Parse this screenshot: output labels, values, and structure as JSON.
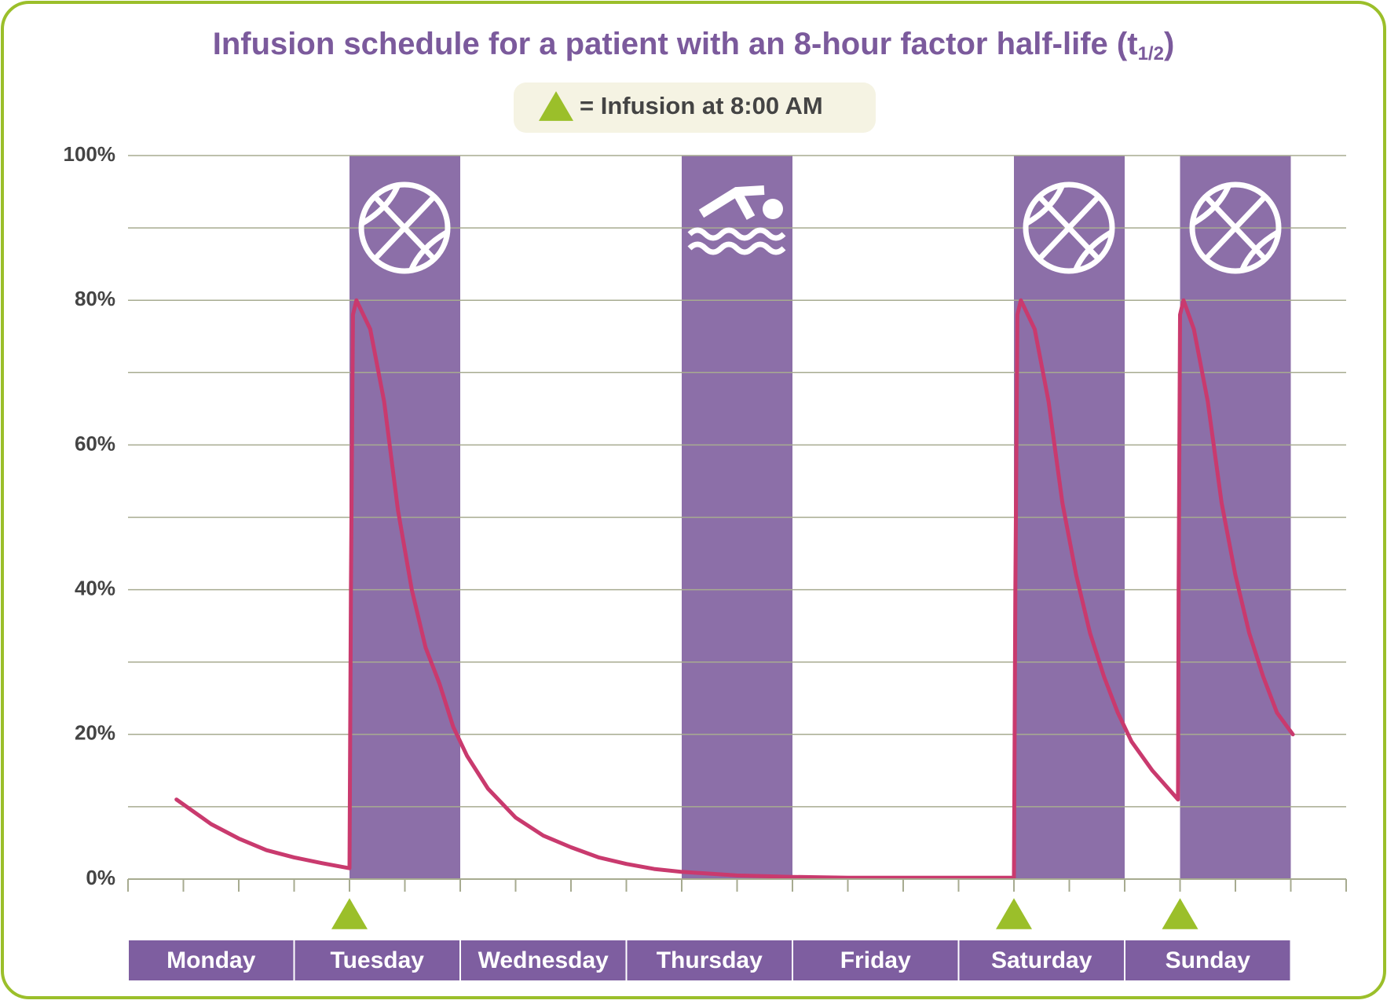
{
  "chart_data": {
    "type": "line",
    "title": "Infusion schedule for a patient with an 8-hour factor half-life (t",
    "title_subscript": "1/2",
    "title_end": ")",
    "legend_label": "= Infusion at 8:00 AM",
    "infusion_color": "#9bbf2a",
    "infusions": [
      32,
      128,
      152
    ],
    "activity_color": "#8c6fa8",
    "activities": [
      {
        "start": 32,
        "end": 48
      },
      {
        "start": 80,
        "end": 96
      },
      {
        "start": 128,
        "end": 144
      },
      {
        "start": 152,
        "end": 168
      }
    ],
    "categories": [
      "Monday",
      "Tuesday",
      "Wednesday",
      "Thursday",
      "Friday",
      "Saturday",
      "Sunday"
    ],
    "category_color": "#7e5ea0",
    "xlim": [
      0,
      176
    ],
    "xticks": [
      0,
      8,
      16,
      24,
      32,
      40,
      48,
      56,
      64,
      72,
      80,
      88,
      96,
      104,
      112,
      120,
      128,
      136,
      144,
      152,
      160,
      168,
      176
    ],
    "ylim": [
      0,
      100
    ],
    "yticks": [
      {
        "value": 0,
        "label": "0%"
      },
      {
        "value": 20,
        "label": "20%"
      },
      {
        "value": 40,
        "label": "40%"
      },
      {
        "value": 60,
        "label": "60%"
      },
      {
        "value": 80,
        "label": "80%"
      },
      {
        "value": 100,
        "label": "100%"
      }
    ],
    "minor_yticks": [
      10,
      30,
      50,
      70,
      90
    ],
    "grid": true,
    "x": [
      7,
      12,
      16,
      20,
      24,
      28,
      32,
      32.2,
      32.5,
      33,
      35,
      37,
      39,
      41,
      43,
      45,
      47,
      49,
      52,
      56,
      60,
      64,
      68,
      72,
      76,
      80,
      88,
      96,
      104,
      112,
      120,
      128,
      128.2,
      128.5,
      129,
      131,
      133,
      135,
      137,
      139,
      141,
      143,
      145,
      148,
      151.7,
      151.8,
      152,
      152.5,
      154,
      156,
      158,
      160,
      162,
      164,
      166,
      168.3
    ],
    "series": [
      {
        "color": "#c93a6e",
        "values": [
          11,
          7.6,
          5.6,
          4,
          3,
          2.2,
          1.5,
          40,
          78,
          80,
          76,
          66,
          51,
          40,
          32,
          27,
          21,
          17,
          12.5,
          8.5,
          6,
          4.4,
          3,
          2.1,
          1.4,
          1,
          0.5,
          0.3,
          0.2,
          0.2,
          0.2,
          0.2,
          40,
          78,
          80,
          76,
          66,
          52,
          42,
          34,
          28,
          23,
          19,
          15,
          11,
          40,
          78,
          80,
          76,
          66,
          52,
          42,
          34,
          28,
          23,
          20
        ]
      }
    ]
  }
}
